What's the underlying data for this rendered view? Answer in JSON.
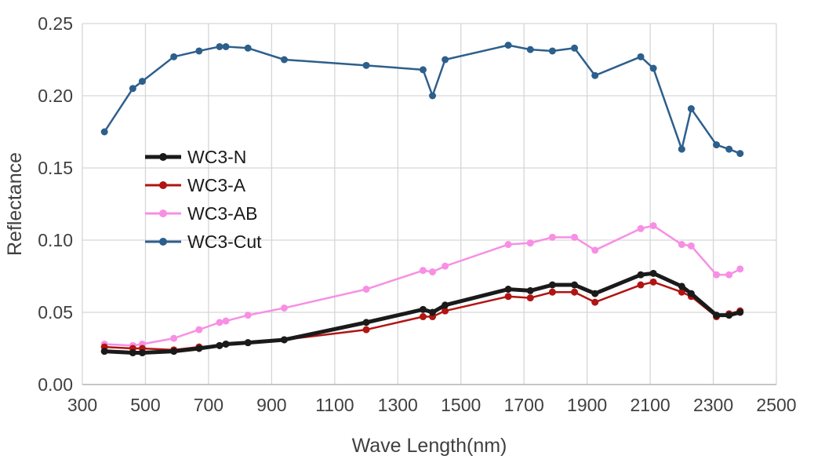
{
  "chart_data": {
    "type": "line",
    "title": "",
    "xlabel": "Wave Length(nm)",
    "ylabel": "Reflectance",
    "xlim": [
      300,
      2500
    ],
    "ylim": [
      0,
      0.25
    ],
    "x_tick_step": 200,
    "y_tick_step": 0.05,
    "grid": true,
    "grid_color": "#d6d6d6",
    "axis_text_color": "#404040",
    "legend_position": "inside-upper-left",
    "x": [
      370,
      460,
      490,
      590,
      670,
      735,
      755,
      825,
      940,
      1200,
      1380,
      1410,
      1450,
      1650,
      1720,
      1790,
      1860,
      1925,
      2070,
      2110,
      2200,
      2230,
      2310,
      2350,
      2385
    ],
    "series": [
      {
        "name": "WC3-AB",
        "color": "#f78fe4",
        "line_width": 2.5,
        "values": [
          0.028,
          0.027,
          0.028,
          0.032,
          0.038,
          0.043,
          0.044,
          0.048,
          0.053,
          0.066,
          0.079,
          0.078,
          0.082,
          0.097,
          0.098,
          0.102,
          0.102,
          0.093,
          0.108,
          0.11,
          0.097,
          0.096,
          0.076,
          0.076,
          0.08
        ]
      },
      {
        "name": "WC3-A",
        "color": "#b01513",
        "line_width": 2.5,
        "values": [
          0.026,
          0.025,
          0.025,
          0.024,
          0.026,
          0.027,
          0.028,
          0.029,
          0.031,
          0.038,
          0.047,
          0.047,
          0.051,
          0.061,
          0.06,
          0.064,
          0.064,
          0.057,
          0.069,
          0.071,
          0.064,
          0.061,
          0.047,
          0.049,
          0.051
        ]
      },
      {
        "name": "WC3-N",
        "color": "#1a1a1a",
        "line_width": 5,
        "values": [
          0.023,
          0.022,
          0.022,
          0.023,
          0.025,
          0.027,
          0.028,
          0.029,
          0.031,
          0.043,
          0.052,
          0.05,
          0.055,
          0.066,
          0.065,
          0.069,
          0.069,
          0.063,
          0.076,
          0.077,
          0.068,
          0.063,
          0.048,
          0.048,
          0.05
        ]
      },
      {
        "name": "WC3-Cut",
        "color": "#2d5f8c",
        "line_width": 2.5,
        "values": [
          0.175,
          0.205,
          0.21,
          0.227,
          0.231,
          0.234,
          0.234,
          0.233,
          0.225,
          0.221,
          0.218,
          0.2,
          0.225,
          0.235,
          0.232,
          0.231,
          0.233,
          0.214,
          0.227,
          0.219,
          0.163,
          0.191,
          0.166,
          0.163,
          0.16
        ]
      }
    ],
    "legend_order": [
      "WC3-N",
      "WC3-A",
      "WC3-AB",
      "WC3-Cut"
    ]
  }
}
